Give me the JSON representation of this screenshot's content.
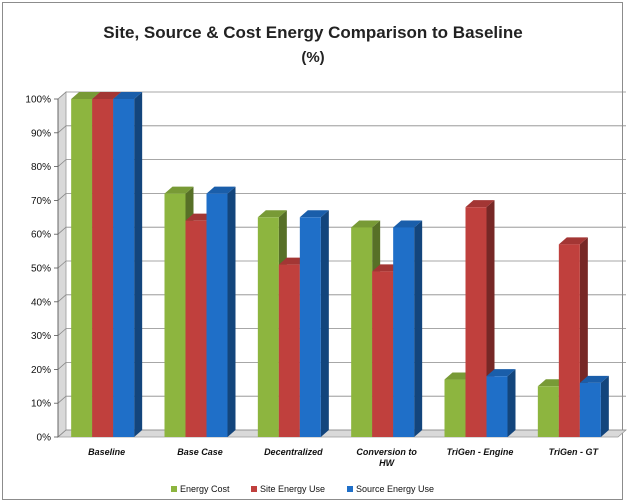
{
  "chart_data": {
    "type": "bar",
    "title_lines": [
      "Site, Source & Cost Energy Comparison to Baseline",
      "(%)"
    ],
    "categories": [
      [
        "Baseline"
      ],
      [
        "Base Case"
      ],
      [
        "Decentralized"
      ],
      [
        "Conversion to",
        "HW"
      ],
      [
        "TriGen - Engine"
      ],
      [
        "TriGen - GT"
      ]
    ],
    "y_ticks": [
      "0%",
      "10%",
      "20%",
      "30%",
      "40%",
      "50%",
      "60%",
      "70%",
      "80%",
      "90%",
      "100%"
    ],
    "ylim": [
      0,
      100
    ],
    "grid": true,
    "legend_position": "bottom",
    "series": [
      {
        "name": "Energy Cost",
        "color": "#8db53f",
        "values": [
          100,
          72,
          65,
          62,
          17,
          15
        ]
      },
      {
        "name": "Site Energy Use",
        "color": "#c0403d",
        "values": [
          100,
          64,
          51,
          49,
          68,
          57
        ]
      },
      {
        "name": "Source Energy Use",
        "color": "#1f6fc8",
        "values": [
          100,
          72,
          65,
          62,
          18,
          16
        ]
      }
    ]
  }
}
